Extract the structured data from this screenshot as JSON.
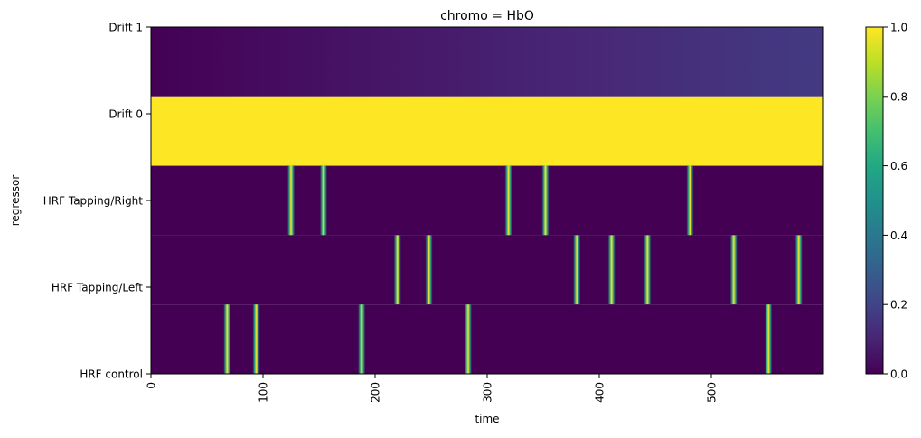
{
  "chart_data": {
    "type": "heatmap",
    "title": "chromo = HbO",
    "xlabel": "time",
    "ylabel": "regressor",
    "xlim": [
      0,
      600
    ],
    "x_ticks": [
      "0",
      "100",
      "200",
      "300",
      "400",
      "500"
    ],
    "rows": [
      "Drift 1",
      "Drift 0",
      "HRF Tapping/Right",
      "HRF Tapping/Left",
      "HRF control"
    ],
    "colormap": "viridis",
    "colorbar": {
      "range": [
        0.0,
        1.0
      ],
      "ticks": [
        "0.0",
        "0.2",
        "0.4",
        "0.6",
        "0.8",
        "1.0"
      ]
    },
    "series": [
      {
        "name": "Drift 1",
        "kind": "linear",
        "from": 0.0,
        "to": 0.17
      },
      {
        "name": "Drift 0",
        "kind": "constant",
        "value": 1.0
      },
      {
        "name": "HRF Tapping/Right",
        "kind": "events",
        "onsets": [
          125,
          154,
          319,
          352,
          481
        ]
      },
      {
        "name": "HRF Tapping/Left",
        "kind": "events",
        "onsets": [
          220,
          248,
          380,
          411,
          443,
          520,
          578
        ]
      },
      {
        "name": "HRF control",
        "kind": "events",
        "onsets": [
          68,
          94,
          188,
          283,
          551
        ]
      }
    ]
  }
}
